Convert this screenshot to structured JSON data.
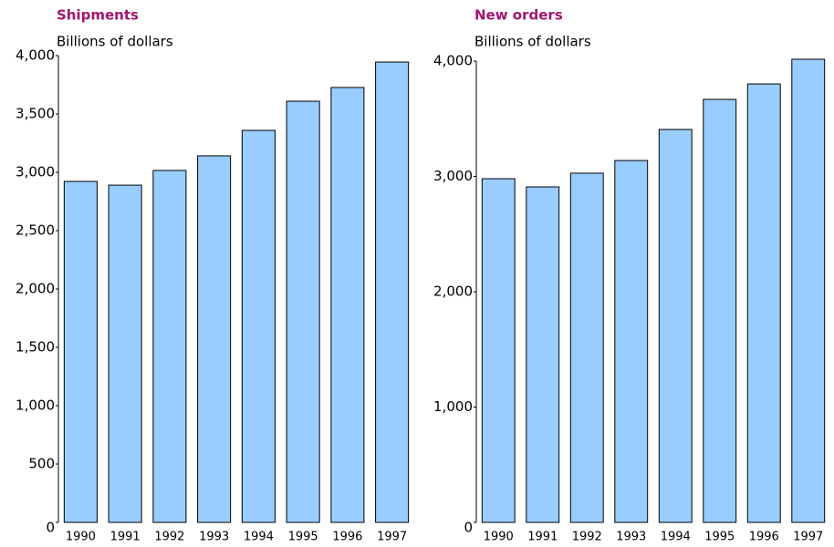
{
  "chart_data": [
    {
      "type": "bar",
      "title": "Shipments",
      "subtitle": "Billions of dollars",
      "categories": [
        "1990",
        "1991",
        "1992",
        "1993",
        "1994",
        "1995",
        "1996",
        "1997"
      ],
      "values": [
        2922,
        2890,
        3016,
        3141,
        3359,
        3609,
        3727,
        3945
      ],
      "color": "#99ccff",
      "ylim": [
        0,
        4000
      ],
      "yticks": [
        0,
        500,
        {
          "value": 1000,
          "label": "1,000"
        },
        {
          "value": 1500,
          "label": "1,500"
        },
        {
          "value": 2000,
          "label": "2,000"
        },
        {
          "value": 2500,
          "label": "2,500"
        },
        {
          "value": 3000,
          "label": "3,000"
        },
        {
          "value": 3500,
          "label": "3,500"
        },
        {
          "value": 4000,
          "label": "4,000"
        }
      ]
    },
    {
      "type": "bar",
      "title": "New orders",
      "subtitle": "Billions of dollars",
      "categories": [
        "1990",
        "1991",
        "1992",
        "1993",
        "1994",
        "1995",
        "1996",
        "1997"
      ],
      "values": [
        2980,
        2909,
        3028,
        3138,
        3407,
        3668,
        3802,
        4016
      ],
      "color": "#99ccff",
      "ylim": [
        0,
        4000
      ],
      "yticks": [
        0,
        {
          "value": 1000,
          "label": "1,000"
        },
        {
          "value": 2000,
          "label": "2,000"
        },
        {
          "value": 3000,
          "label": "3,000"
        },
        {
          "value": 4000,
          "label": "4,000"
        }
      ]
    }
  ]
}
